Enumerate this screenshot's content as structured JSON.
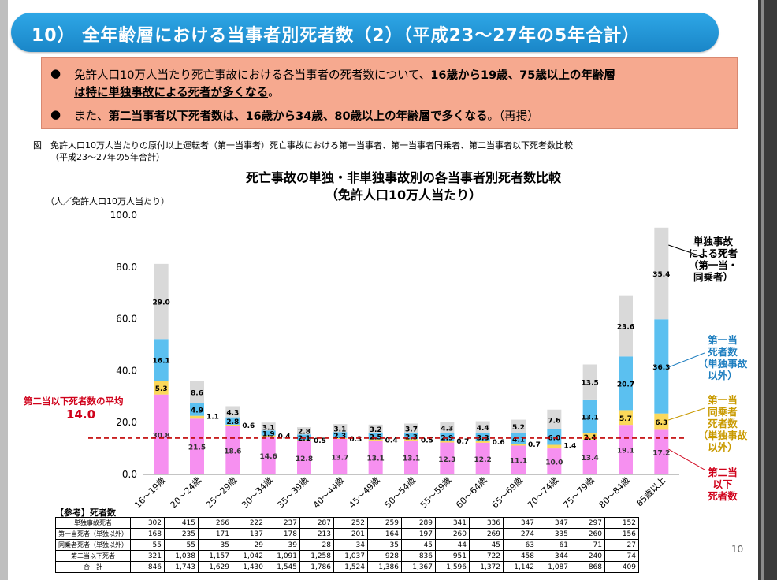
{
  "title": "10） 全年齢層における当事者別死者数（2）（平成23～27年の5年合計）",
  "summary": {
    "line1_pre": "免許人口10万人当たり死亡事故における各当事者の死者数について、",
    "line1_hl": "16歳から19歳、75歳以上の年齢層",
    "line2_hl": "は特に単独事故による死者が多くなる",
    "line2_post": "。",
    "line3_pre": "また、",
    "line3_hl": "第二当事者以下死者数は、16歳から34歳、80歳以上の年齢層で多くなる",
    "line3_post": "。（再掲）"
  },
  "caption": {
    "line1": "図　免許人口10万人当たりの原付以上運転者（第一当事者）死亡事故における第一当事者、第一当事者同乗者、第二当事者以下死者数比較",
    "line2": "（平成23～27年の5年合計）"
  },
  "chart_data": {
    "type": "bar",
    "stacked": true,
    "title": "死亡事故の単独・非単独事故別の各当事者別死者数比較",
    "subtitle": "（免許人口10万人当たり）",
    "ylabel": "（人／免許人口10万人当たり）",
    "ylim": [
      0,
      100
    ],
    "yticks": [
      "0.0",
      "20.0",
      "40.0",
      "60.0",
      "80.0",
      "100.0"
    ],
    "categories": [
      "16～19歳",
      "20～24歳",
      "25～29歳",
      "30～34歳",
      "35～39歳",
      "40～44歳",
      "45～49歳",
      "50～54歳",
      "55～59歳",
      "60～64歳",
      "65～69歳",
      "70～74歳",
      "75～79歳",
      "80～84歳",
      "85歳以上"
    ],
    "series": [
      {
        "name": "第二当事者以下死者数",
        "color": "#f690f0",
        "values": [
          30.8,
          21.5,
          18.6,
          14.6,
          12.8,
          13.7,
          13.1,
          13.1,
          12.3,
          12.2,
          11.1,
          10.0,
          13.4,
          19.1,
          17.2
        ],
        "labels": [
          "30.8",
          "21.5",
          "18.6",
          "14.6",
          "12.8",
          "13.7",
          "13.1",
          "13.1",
          "12.3",
          "12.2",
          "11.1",
          "10.0",
          "13.4",
          "19.1",
          "17.2"
        ]
      },
      {
        "name": "第一当事者同乗者死者数（単独事故以外）",
        "color": "#fbd85a",
        "values": [
          5.3,
          1.1,
          0.6,
          0.4,
          0.5,
          0.3,
          0.4,
          0.5,
          0.7,
          0.6,
          0.7,
          1.4,
          2.4,
          5.7,
          6.3
        ],
        "labels": [
          "5.3",
          "1.1",
          "0.6",
          "0.4",
          "0.5",
          "0.3",
          "0.4",
          "0.5",
          "0.7",
          "0.6",
          "0.7",
          "1.4",
          "2.4",
          "5.7",
          "6.3"
        ]
      },
      {
        "name": "第一当事者死者数（単独事故以外）",
        "color": "#5bc0f0",
        "values": [
          16.1,
          4.9,
          2.8,
          1.9,
          2.1,
          2.3,
          2.5,
          2.3,
          2.9,
          3.3,
          4.1,
          6.0,
          13.1,
          20.7,
          36.3
        ],
        "labels": [
          "16.1",
          "4.9",
          "2.8",
          "1.9",
          "2.1",
          "2.3",
          "2.5",
          "2.3",
          "2.9",
          "3.3",
          "4.1",
          "6.0",
          "13.1",
          "20.7",
          "36.3"
        ]
      },
      {
        "name": "単独事故による死者（第一当事者・同乗者）",
        "color": "#d9d9d9",
        "values": [
          29.0,
          8.6,
          4.3,
          3.1,
          2.8,
          3.1,
          3.2,
          3.7,
          4.3,
          4.4,
          5.2,
          7.6,
          13.5,
          23.6,
          35.4
        ],
        "labels": [
          "29.0",
          "8.6",
          "4.3",
          "3.1",
          "2.8",
          "3.1",
          "3.2",
          "3.7",
          "4.3",
          "4.4",
          "5.2",
          "7.6",
          "13.5",
          "23.6",
          "35.4"
        ]
      }
    ],
    "average_line": {
      "label": "第二当以下死者数の平均",
      "value": 14.0,
      "value_label": "14.0",
      "color": "#c00000"
    }
  },
  "legend": {
    "single": [
      "単独事故",
      "による死者",
      "（第一当・",
      "同乗者）"
    ],
    "first": [
      "第一当",
      "死者数",
      "（単独事故",
      "以外）"
    ],
    "passenger": [
      "第一当",
      "同乗者",
      "死者数",
      "（単独事故",
      "以外）"
    ],
    "second": [
      "第二当",
      "以下",
      "死者数"
    ],
    "colors": {
      "single": "#000000",
      "first": "#1f7fc0",
      "passenger": "#c99a00",
      "second": "#d0021b"
    }
  },
  "reference": {
    "label": "【参考】死者数",
    "rows": [
      {
        "name": "単独事故死者",
        "values": [
          "302",
          "415",
          "266",
          "222",
          "237",
          "287",
          "252",
          "259",
          "289",
          "341",
          "336",
          "347",
          "347",
          "297",
          "152"
        ]
      },
      {
        "name": "第一当死者（単独以外）",
        "values": [
          "168",
          "235",
          "171",
          "137",
          "178",
          "213",
          "201",
          "164",
          "197",
          "260",
          "269",
          "274",
          "335",
          "260",
          "156"
        ]
      },
      {
        "name": "同乗者死者（単独以外）",
        "values": [
          "55",
          "55",
          "35",
          "29",
          "39",
          "28",
          "34",
          "35",
          "45",
          "44",
          "45",
          "63",
          "61",
          "71",
          "27"
        ]
      },
      {
        "name": "第二当以下死者",
        "values": [
          "321",
          "1,038",
          "1,157",
          "1,042",
          "1,091",
          "1,258",
          "1,037",
          "928",
          "836",
          "951",
          "722",
          "458",
          "344",
          "240",
          "74"
        ]
      },
      {
        "name": "合　計",
        "values": [
          "846",
          "1,743",
          "1,629",
          "1,430",
          "1,545",
          "1,786",
          "1,524",
          "1,386",
          "1,367",
          "1,596",
          "1,372",
          "1,142",
          "1,087",
          "868",
          "409"
        ]
      }
    ]
  },
  "page_number": "10"
}
